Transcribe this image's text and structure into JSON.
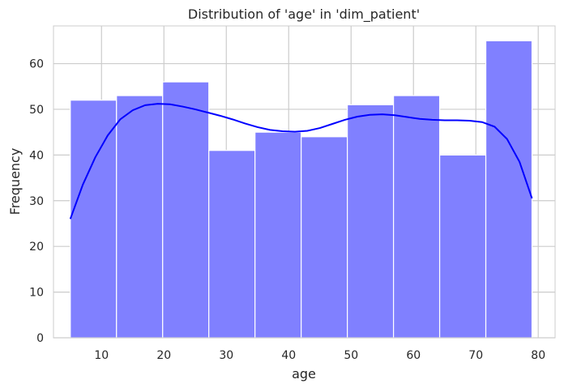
{
  "chart_data": {
    "type": "bar",
    "title": "Distribution of 'age' in 'dim_patient'",
    "xlabel": "age",
    "ylabel": "Frequency",
    "xlim": [
      2.3,
      82.7
    ],
    "ylim": [
      0,
      68.25
    ],
    "grid": true,
    "x_ticks": [
      10,
      20,
      30,
      40,
      50,
      60,
      70,
      80
    ],
    "y_ticks": [
      0,
      10,
      20,
      30,
      40,
      50,
      60
    ],
    "bins": [
      {
        "start": 5.0,
        "end": 12.4,
        "count": 52
      },
      {
        "start": 12.4,
        "end": 19.8,
        "count": 53
      },
      {
        "start": 19.8,
        "end": 27.2,
        "count": 56
      },
      {
        "start": 27.2,
        "end": 34.6,
        "count": 41
      },
      {
        "start": 34.6,
        "end": 42.0,
        "count": 45
      },
      {
        "start": 42.0,
        "end": 49.4,
        "count": 44
      },
      {
        "start": 49.4,
        "end": 56.8,
        "count": 51
      },
      {
        "start": 56.8,
        "end": 64.2,
        "count": 53
      },
      {
        "start": 64.2,
        "end": 71.6,
        "count": 40
      },
      {
        "start": 71.6,
        "end": 79.0,
        "count": 65
      }
    ],
    "kde": {
      "x": [
        5,
        7,
        9,
        11,
        13,
        15,
        17,
        19,
        21,
        23,
        25,
        27,
        29,
        31,
        33,
        35,
        37,
        39,
        41,
        43,
        45,
        47,
        49,
        51,
        53,
        55,
        57,
        59,
        61,
        63,
        65,
        67,
        69,
        71,
        73,
        75,
        77,
        79
      ],
      "y": [
        26,
        33.5,
        39.5,
        44.3,
        47.8,
        49.8,
        50.9,
        51.2,
        51.1,
        50.6,
        50.0,
        49.3,
        48.6,
        47.8,
        46.9,
        46.1,
        45.5,
        45.2,
        45.1,
        45.3,
        45.9,
        46.8,
        47.7,
        48.4,
        48.8,
        48.9,
        48.7,
        48.3,
        47.9,
        47.7,
        47.6,
        47.6,
        47.5,
        47.2,
        46.2,
        43.5,
        38.5,
        30.5
      ]
    },
    "colors": {
      "bar_fill": "#8080ff",
      "bar_edge": "#ffffff",
      "kde_line": "#0000ff",
      "grid": "#cccccc",
      "spine": "#cccccc",
      "text": "#262626"
    }
  }
}
